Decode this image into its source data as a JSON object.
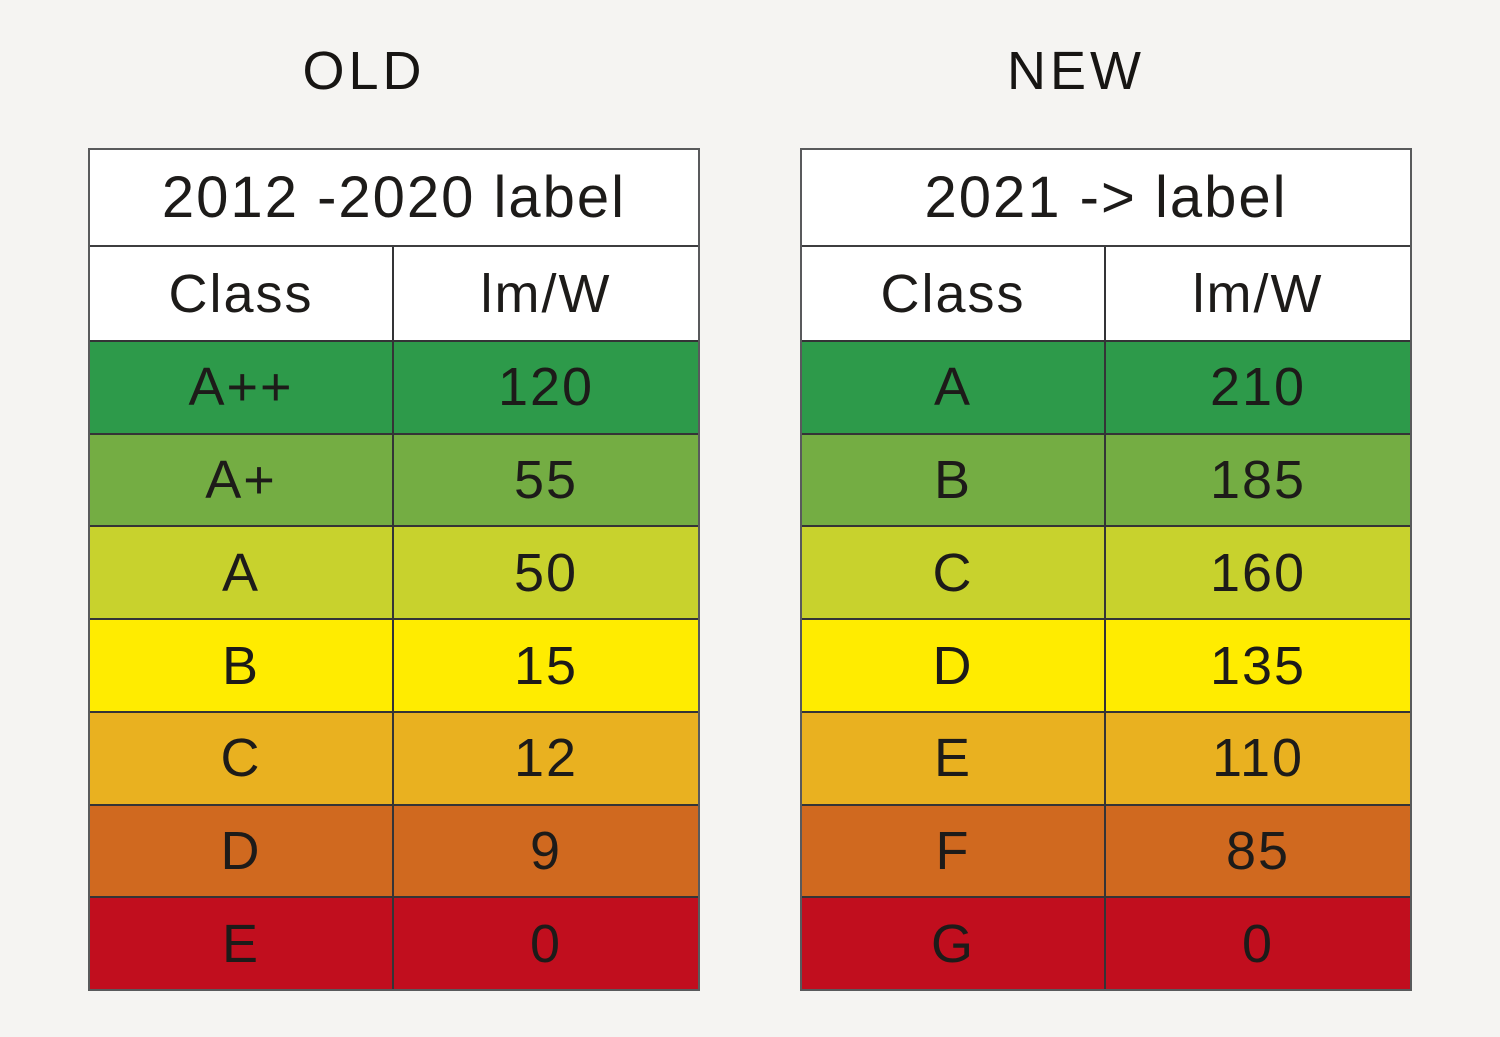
{
  "page": {
    "background": "#f5f4f2",
    "text_color": "#1d1b19",
    "border_color": "#343436",
    "outer_border_color": "#595a5c"
  },
  "chart_data": [
    {
      "type": "table",
      "title": "OLD",
      "header": "2012 -2020 label",
      "columns": [
        "Class",
        "lm/W"
      ],
      "rows": [
        [
          "A++",
          "120"
        ],
        [
          "A+",
          "55"
        ],
        [
          "A",
          "50"
        ],
        [
          "B",
          "15"
        ],
        [
          "C",
          "12"
        ],
        [
          "D",
          "9"
        ],
        [
          "E",
          "0"
        ]
      ],
      "row_colors": [
        "#2d9a4a",
        "#74ad43",
        "#c8d22d",
        "#ffec00",
        "#e9b120",
        "#d0691f",
        "#c10e1e"
      ]
    },
    {
      "type": "table",
      "title": "NEW",
      "header": "2021 -> label",
      "columns": [
        "Class",
        "lm/W"
      ],
      "rows": [
        [
          "A",
          "210"
        ],
        [
          "B",
          "185"
        ],
        [
          "C",
          "160"
        ],
        [
          "D",
          "135"
        ],
        [
          "E",
          "110"
        ],
        [
          "F",
          "85"
        ],
        [
          "G",
          "0"
        ]
      ],
      "row_colors": [
        "#2d9a4a",
        "#74ad43",
        "#c8d22d",
        "#ffec00",
        "#e9b120",
        "#d0691f",
        "#c10e1e"
      ]
    }
  ]
}
